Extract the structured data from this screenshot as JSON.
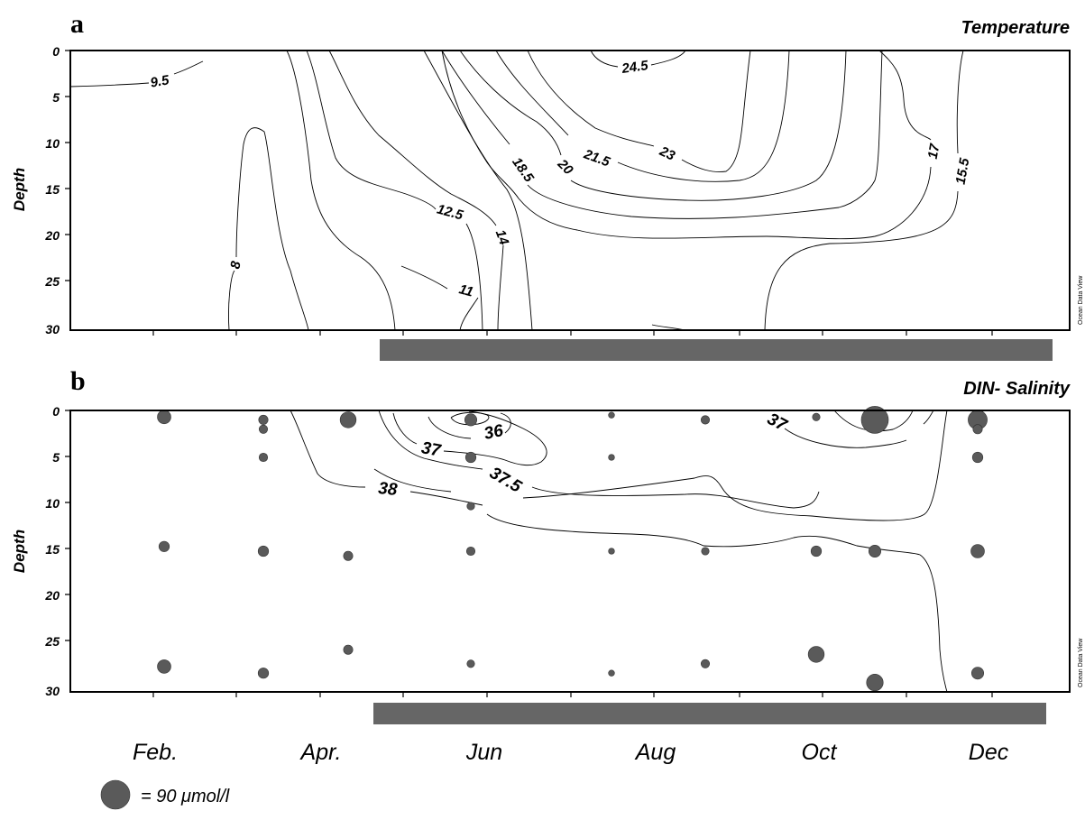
{
  "figure": {
    "panel_a": {
      "letter": "a",
      "title": "Temperature",
      "y_axis_title": "Depth",
      "y_ticks": [
        "0",
        "5",
        "10",
        "15",
        "20",
        "25",
        "30"
      ],
      "watermark": "Ocean Data View",
      "contour_labels": [
        "9.5",
        "8",
        "11",
        "12.5",
        "14",
        "18.5",
        "20",
        "21.5",
        "23",
        "24.5",
        "17",
        "15.5"
      ]
    },
    "panel_b": {
      "letter": "b",
      "title": "DIN- Salinity",
      "y_axis_title": "Depth",
      "y_ticks": [
        "0",
        "5",
        "10",
        "15",
        "20",
        "25",
        "30"
      ],
      "watermark": "Ocean Data View",
      "contour_labels": [
        "36",
        "37",
        "37.5",
        "38",
        "37"
      ]
    },
    "x_month_labels": [
      "Feb.",
      "Apr.",
      "Jun",
      "Aug",
      "Oct",
      "Dec"
    ],
    "legend": {
      "symbol": "grey-circle",
      "text": "= 90 μmol/l"
    },
    "colors": {
      "bar": "#666666",
      "point": "#5a5a5a",
      "line": "#000000"
    }
  },
  "chart_data": [
    {
      "type": "heatmap",
      "title": "Temperature",
      "xlabel": "",
      "ylabel": "Depth",
      "ylim": [
        30,
        0
      ],
      "x_tick_labels": [
        "Feb.",
        "Apr.",
        "Jun",
        "Aug",
        "Oct",
        "Dec"
      ],
      "contour_levels": [
        8,
        9.5,
        11,
        12.5,
        14,
        15.5,
        17,
        18.5,
        20,
        21.5,
        23,
        24.5
      ]
    },
    {
      "type": "scatter",
      "title": "DIN- Salinity",
      "xlabel": "",
      "ylabel": "Depth",
      "ylim": [
        30,
        0
      ],
      "x_tick_labels": [
        "Feb.",
        "Apr.",
        "Jun",
        "Aug",
        "Oct",
        "Dec"
      ],
      "salinity_contour_levels": [
        36,
        37,
        37.5,
        38
      ],
      "legend": "= 90 μmol/l",
      "din_points_depth": {
        "Feb.": [
          0.7,
          14.5,
          27.3
        ],
        "Mar.": [
          1,
          2,
          5,
          15,
          28
        ],
        "Apr.": [
          1,
          15.5,
          25.5
        ],
        "Jun": [
          1,
          5,
          10.2,
          15,
          27
        ],
        "Jul.": [
          0.5,
          5,
          15,
          28
        ],
        "Aug": [
          1,
          15,
          27
        ],
        "Oct": [
          0.7,
          15,
          26
        ],
        "Nov.": [
          1,
          15,
          29
        ],
        "Dec": [
          1,
          2,
          5,
          15,
          28
        ]
      },
      "din_points_size_relative": {
        "Feb.": [
          0.25,
          0.15,
          0.25
        ],
        "Mar.": [
          0.12,
          0.1,
          0.1,
          0.15,
          0.15
        ],
        "Apr.": [
          0.35,
          0.12,
          0.12
        ],
        "Jun": [
          0.2,
          0.15,
          0.08,
          0.1,
          0.08
        ],
        "Jul.": [
          0.05,
          0.05,
          0.05,
          0.05
        ],
        "Aug": [
          0.1,
          0.08,
          0.1
        ],
        "Oct": [
          0.08,
          0.15,
          0.35
        ],
        "Nov.": [
          1.0,
          0.2,
          0.38
        ],
        "Dec": [
          0.5,
          0.12,
          0.15,
          0.25,
          0.2
        ]
      }
    }
  ]
}
